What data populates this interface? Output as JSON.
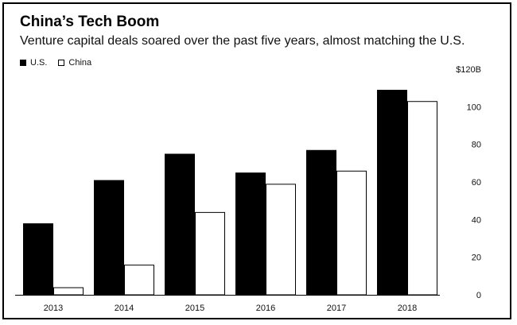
{
  "header": {
    "title": "China’s Tech Boom",
    "subtitle": "Venture capital deals soared over the past five years, almost matching the U.S."
  },
  "chart_data": {
    "type": "bar",
    "title": "China’s Tech Boom",
    "subtitle": "Venture capital deals soared over the past five years, almost matching the U.S.",
    "xlabel": "",
    "ylabel": "",
    "categories": [
      "2013",
      "2014",
      "2015",
      "2016",
      "2017",
      "2018"
    ],
    "series": [
      {
        "name": "U.S.",
        "color": "#000000",
        "values": [
          38,
          61,
          75,
          65,
          77,
          109
        ]
      },
      {
        "name": "China",
        "color": "#ffffff",
        "values": [
          4,
          16,
          44,
          59,
          66,
          103
        ]
      }
    ],
    "ylim": [
      0,
      120
    ],
    "yticks": [
      0,
      20,
      40,
      60,
      80,
      100,
      120
    ],
    "ytick_labels": [
      "0",
      "20",
      "40",
      "60",
      "80",
      "100",
      "$120B"
    ],
    "legend_position": "top-left",
    "grid": false,
    "y_axis_side": "right"
  }
}
